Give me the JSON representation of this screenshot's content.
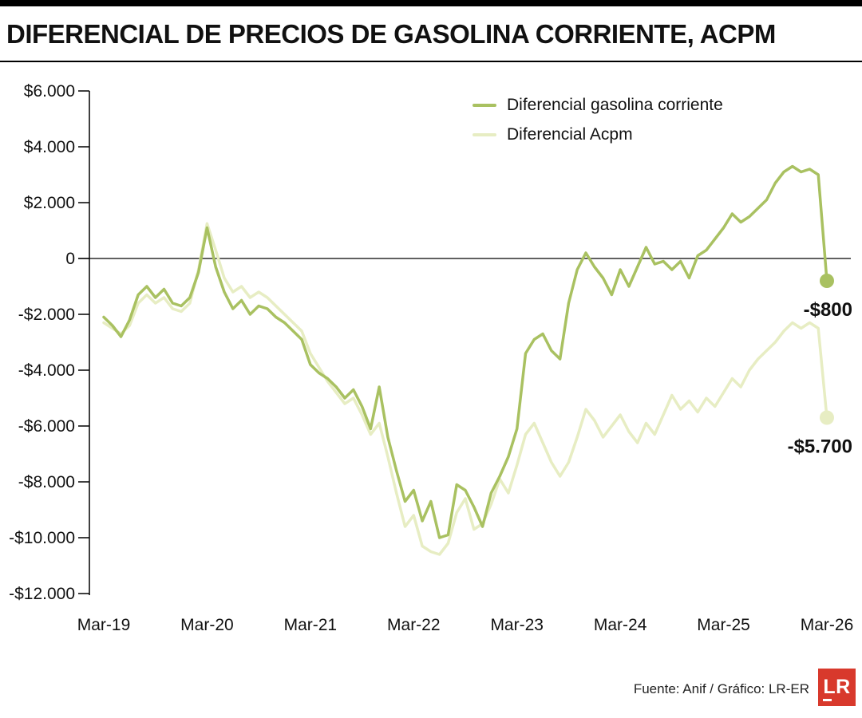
{
  "page": {
    "title": "DIFERENCIAL DE PRECIOS DE GASOLINA CORRIENTE, ACPM",
    "source": "Fuente: Anif / Gráfico: LR-ER",
    "logo_text": "LR",
    "logo_color": "#d8392c"
  },
  "chart_data": {
    "type": "line",
    "title": "DIFERENCIAL DE PRECIOS DE GASOLINA CORRIENTE, ACPM",
    "xlabel": "",
    "ylabel": "",
    "grid": false,
    "legend_position": "top-center",
    "ylim": [
      -12000,
      6000
    ],
    "y_tick_values": [
      6000,
      4000,
      2000,
      0,
      -2000,
      -4000,
      -6000,
      -8000,
      -10000,
      -12000
    ],
    "y_tick_labels": [
      "$6.000",
      "$4.000",
      "$2.000",
      "0",
      "-$2.000",
      "-$4.000",
      "-$6.000",
      "-$8.000",
      "-$10.000",
      "-$12.000"
    ],
    "x_tick_labels": [
      "Mar-19",
      "Mar-20",
      "Mar-21",
      "Mar-22",
      "Mar-23",
      "Mar-24",
      "Mar-25",
      "Mar-26"
    ],
    "x_tick_every": 12,
    "x_frequency": "monthly",
    "series": [
      {
        "name": "Diferencial gasolina corriente",
        "color": "#a9c161",
        "end_label": "-$800",
        "end_value": -800,
        "values": [
          -2100,
          -2400,
          -2800,
          -2200,
          -1300,
          -1000,
          -1400,
          -1100,
          -1600,
          -1700,
          -1400,
          -500,
          1100,
          -300,
          -1200,
          -1800,
          -1500,
          -2000,
          -1700,
          -1800,
          -2100,
          -2300,
          -2600,
          -2900,
          -3800,
          -4100,
          -4300,
          -4600,
          -5000,
          -4700,
          -5300,
          -6100,
          -4600,
          -6400,
          -7600,
          -8700,
          -8300,
          -9400,
          -8700,
          -10000,
          -9900,
          -8100,
          -8300,
          -8900,
          -9600,
          -8400,
          -7800,
          -7100,
          -6100,
          -3400,
          -2900,
          -2700,
          -3300,
          -3600,
          -1600,
          -400,
          200,
          -300,
          -700,
          -1300,
          -400,
          -1000,
          -300,
          400,
          -200,
          -100,
          -400,
          -100,
          -700,
          100,
          300,
          700,
          1100,
          1600,
          1300,
          1500,
          1800,
          2100,
          2700,
          3100,
          3300,
          3100,
          3200,
          3000,
          -800
        ]
      },
      {
        "name": "Diferencial Acpm",
        "color": "#e7edc3",
        "end_label": "-$5.700",
        "end_value": -5700,
        "values": [
          -2300,
          -2500,
          -2700,
          -2400,
          -1600,
          -1300,
          -1600,
          -1400,
          -1800,
          -1900,
          -1600,
          -400,
          1250,
          300,
          -700,
          -1200,
          -1000,
          -1400,
          -1200,
          -1400,
          -1700,
          -2000,
          -2300,
          -2600,
          -3400,
          -3900,
          -4400,
          -4800,
          -5200,
          -5000,
          -5600,
          -6300,
          -5900,
          -7100,
          -8400,
          -9600,
          -9200,
          -10300,
          -10500,
          -10600,
          -10200,
          -9100,
          -8600,
          -9700,
          -9500,
          -8800,
          -7900,
          -8400,
          -7400,
          -6300,
          -5900,
          -6600,
          -7300,
          -7800,
          -7300,
          -6400,
          -5400,
          -5800,
          -6400,
          -6000,
          -5600,
          -6200,
          -6600,
          -5900,
          -6300,
          -5600,
          -4900,
          -5400,
          -5100,
          -5500,
          -5000,
          -5300,
          -4800,
          -4300,
          -4600,
          -4000,
          -3600,
          -3300,
          -3000,
          -2600,
          -2300,
          -2500,
          -2300,
          -2500,
          -5700
        ]
      }
    ]
  }
}
